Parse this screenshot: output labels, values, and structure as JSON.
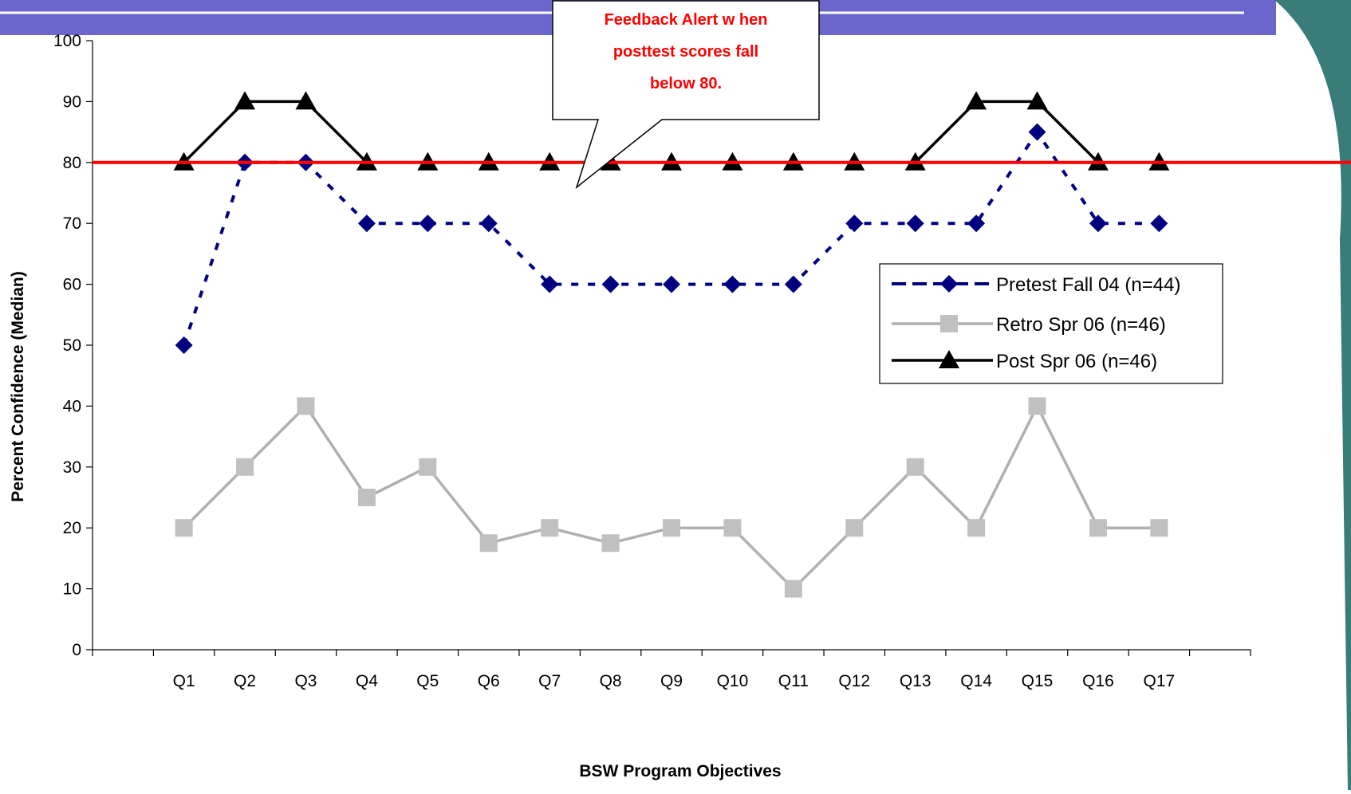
{
  "colors": {
    "banner": "#6a66cc",
    "frame_teal": "#3a7c7a",
    "threshold": "#ff0000",
    "pretest": "#000080",
    "retro": "#b0b0b0",
    "retro_marker": "#c0c0c0",
    "post": "#000000",
    "callout_text": "#ff0000"
  },
  "callout": {
    "lines": [
      "Feedback Alert w hen",
      "posttest scores fall",
      "below 80."
    ]
  },
  "legend": {
    "placement": "right",
    "entries": [
      {
        "label": "Pretest Fall 04 (n=44)",
        "series": 0
      },
      {
        "label": "Retro Spr 06 (n=46)",
        "series": 1
      },
      {
        "label": "Post Spr 06 (n=46)",
        "series": 2
      }
    ]
  },
  "chart_data": {
    "type": "line",
    "xlabel": "BSW Program Objectives",
    "ylabel": "Percent Confidence (Median)",
    "ylim": [
      0,
      100
    ],
    "yticks": [
      0,
      10,
      20,
      30,
      40,
      50,
      60,
      70,
      80,
      90,
      100
    ],
    "categories": [
      "Q1",
      "Q2",
      "Q3",
      "Q4",
      "Q5",
      "Q6",
      "Q7",
      "Q8",
      "Q9",
      "Q10",
      "Q11",
      "Q12",
      "Q13",
      "Q14",
      "Q15",
      "Q16",
      "Q17"
    ],
    "threshold": 80,
    "grid": false,
    "series": [
      {
        "name": "Pretest Fall 04 (n=44)",
        "marker": "diamond",
        "dash": true,
        "values": [
          50,
          80,
          80,
          70,
          70,
          70,
          60,
          60,
          60,
          60,
          60,
          70,
          70,
          70,
          85,
          70,
          70
        ]
      },
      {
        "name": "Retro Spr 06 (n=46)",
        "marker": "square",
        "dash": false,
        "values": [
          20,
          30,
          40,
          25,
          30,
          17.5,
          20,
          17.5,
          20,
          20,
          10,
          20,
          30,
          20,
          40,
          20,
          20
        ]
      },
      {
        "name": "Post Spr 06 (n=46)",
        "marker": "triangle",
        "dash": false,
        "values": [
          80,
          90,
          90,
          80,
          80,
          80,
          80,
          80,
          80,
          80,
          80,
          80,
          80,
          90,
          90,
          80,
          80
        ]
      }
    ]
  }
}
